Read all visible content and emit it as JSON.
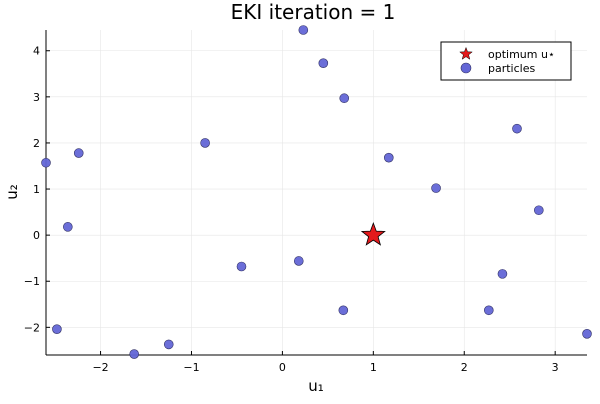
{
  "chart_data": {
    "type": "scatter",
    "title": "EKI iteration = 1",
    "xlabel": "u₁",
    "ylabel": "u₂",
    "xlim": [
      -2.6,
      3.35
    ],
    "ylim": [
      -2.6,
      4.45
    ],
    "xticks": [
      -2,
      -1,
      0,
      1,
      2,
      3
    ],
    "yticks": [
      -2,
      -1,
      0,
      1,
      2,
      3,
      4
    ],
    "xtick_labels": [
      "−2",
      "−1",
      "0",
      "1",
      "2",
      "3"
    ],
    "ytick_labels": [
      "−2",
      "−1",
      "0",
      "1",
      "2",
      "3",
      "4"
    ],
    "grid": true,
    "legend_position": "top-right",
    "series": [
      {
        "name": "optimum u⋆",
        "marker": "star",
        "color": "#e41a1c",
        "points": [
          [
            1.0,
            0.0
          ]
        ]
      },
      {
        "name": "particles",
        "marker": "circle",
        "color": "#6366d6",
        "points": [
          [
            0.23,
            4.45
          ],
          [
            0.45,
            3.73
          ],
          [
            0.68,
            2.97
          ],
          [
            -0.85,
            2.0
          ],
          [
            -2.24,
            1.78
          ],
          [
            -2.6,
            1.57
          ],
          [
            1.17,
            1.68
          ],
          [
            2.58,
            2.31
          ],
          [
            1.69,
            1.02
          ],
          [
            2.82,
            0.54
          ],
          [
            -2.36,
            0.18
          ],
          [
            -0.45,
            -0.68
          ],
          [
            0.18,
            -0.56
          ],
          [
            2.42,
            -0.84
          ],
          [
            0.67,
            -1.63
          ],
          [
            2.27,
            -1.63
          ],
          [
            3.35,
            -2.14
          ],
          [
            -2.48,
            -2.04
          ],
          [
            -1.25,
            -2.37
          ],
          [
            -1.63,
            -2.58
          ]
        ]
      }
    ]
  }
}
